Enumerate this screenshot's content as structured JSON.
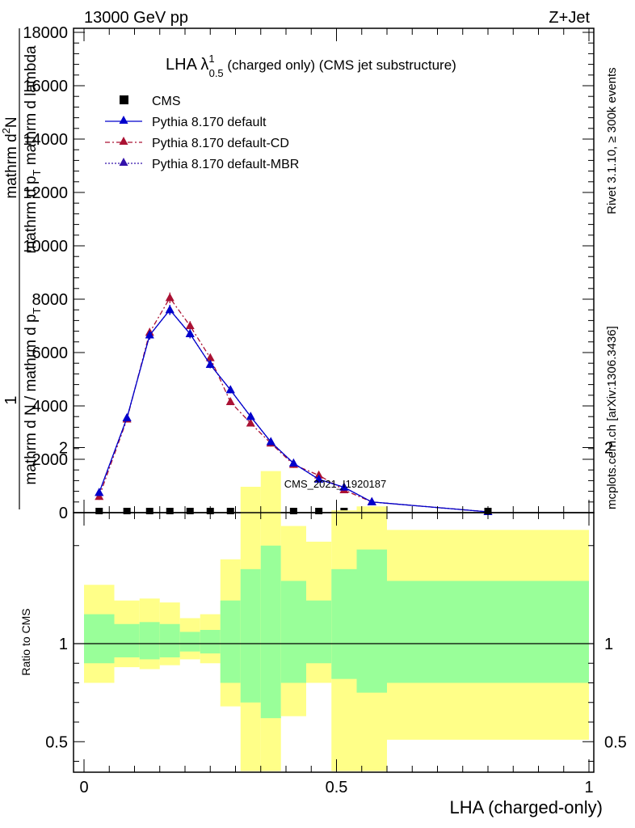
{
  "header": {
    "beam": "13000 GeV pp",
    "process": "Z+Jet",
    "rivet": "Rivet 3.1.10, ≥ 300k events",
    "mcplots": "mcplots.cern.ch [arXiv:1306.3436]"
  },
  "main": {
    "title_main": "LHA λ",
    "title_sup": "1",
    "title_sub": "0.5",
    "title_rest": " (charged only) (CMS jet substructure)",
    "ylabel_left": "mathrm d N / mathrm d p",
    "ylabel_left_sub": "T",
    "ylabel_right": "mathrm d",
    "ylabel_right_sup": "2",
    "ylabel_right_rest": "N",
    "ylabel_one": "1",
    "ylabel_overlap": "mathrm d p",
    "ylabel_overlap_sub": "T",
    "ylabel_overlap_rest": " mathrm d lambda",
    "watermark": "CMS_2021_I1920187"
  },
  "legend": {
    "cms": "CMS",
    "default": "Pythia 8.170 default",
    "cd": "Pythia 8.170 default-CD",
    "mbr": "Pythia 8.170 default-MBR"
  },
  "ratio": {
    "ylabel": "Ratio to CMS"
  },
  "xaxis": {
    "label": "LHA (charged-only)"
  },
  "colors": {
    "default": "#0000cc",
    "cd": "#aa1133",
    "mbr": "#3311aa",
    "band_inner": "#99ff99",
    "band_outer": "#ffff88"
  },
  "chart_data": {
    "type": "line",
    "xlabel": "LHA (charged-only)",
    "xlim": [
      0,
      1
    ],
    "ylim": [
      0,
      18000
    ],
    "y_ticks": [
      0,
      2000,
      4000,
      6000,
      8000,
      10000,
      12000,
      14000,
      16000,
      18000
    ],
    "y_tick_labels": [
      "0",
      "2000",
      "4000",
      "6000",
      "8000",
      "10000",
      "12000",
      "14000",
      "16000",
      "18000"
    ],
    "x_ticks": [
      0,
      0.5,
      1
    ],
    "x_tick_labels": [
      "0",
      "0.5",
      "1"
    ],
    "ratio_ylim": [
      0.35,
      2.3
    ],
    "ratio_ticks": [
      0.5,
      1,
      2
    ],
    "ratio_tick_labels": [
      "0.5",
      "1",
      "2"
    ],
    "x": [
      0.03,
      0.085,
      0.13,
      0.17,
      0.21,
      0.25,
      0.29,
      0.33,
      0.37,
      0.415,
      0.465,
      0.515,
      0.57,
      0.8
    ],
    "series": [
      {
        "name": "CMS",
        "values": [
          40,
          40,
          40,
          40,
          40,
          40,
          40,
          40,
          40,
          40,
          40,
          40,
          40,
          40
        ]
      },
      {
        "name": "Pythia 8.170 default",
        "values": [
          750,
          3550,
          6650,
          7600,
          6700,
          5550,
          4600,
          3600,
          2650,
          1850,
          1250,
          950,
          400,
          30
        ]
      },
      {
        "name": "Pythia 8.170 default-CD",
        "values": [
          600,
          3500,
          6750,
          8050,
          7000,
          5800,
          4150,
          3350,
          2600,
          1800,
          1400,
          850,
          400,
          30
        ]
      },
      {
        "name": "Pythia 8.170 default-MBR",
        "values": [
          750,
          3550,
          6650,
          7600,
          6700,
          5550,
          4600,
          3600,
          2650,
          1850,
          1250,
          950,
          400,
          30
        ]
      }
    ],
    "bands": {
      "edges": [
        0,
        0.06,
        0.11,
        0.15,
        0.19,
        0.23,
        0.27,
        0.31,
        0.35,
        0.39,
        0.44,
        0.49,
        0.54,
        0.6,
        1.0
      ],
      "inner_lo": [
        0.9,
        0.93,
        0.92,
        0.93,
        0.96,
        0.95,
        0.8,
        0.7,
        0.62,
        0.8,
        0.9,
        0.82,
        0.75,
        0.8
      ],
      "inner_hi": [
        1.15,
        1.1,
        1.11,
        1.1,
        1.06,
        1.07,
        1.22,
        1.38,
        1.5,
        1.32,
        1.22,
        1.38,
        1.48,
        1.32
      ],
      "outer_lo": [
        0.8,
        0.88,
        0.87,
        0.89,
        0.92,
        0.9,
        0.68,
        0.35,
        0.35,
        0.63,
        0.8,
        0.35,
        0.35,
        0.51
      ],
      "outer_hi": [
        1.3,
        1.22,
        1.23,
        1.21,
        1.13,
        1.15,
        1.43,
        1.8,
        1.88,
        1.6,
        1.52,
        1.68,
        1.7,
        1.58
      ]
    }
  }
}
